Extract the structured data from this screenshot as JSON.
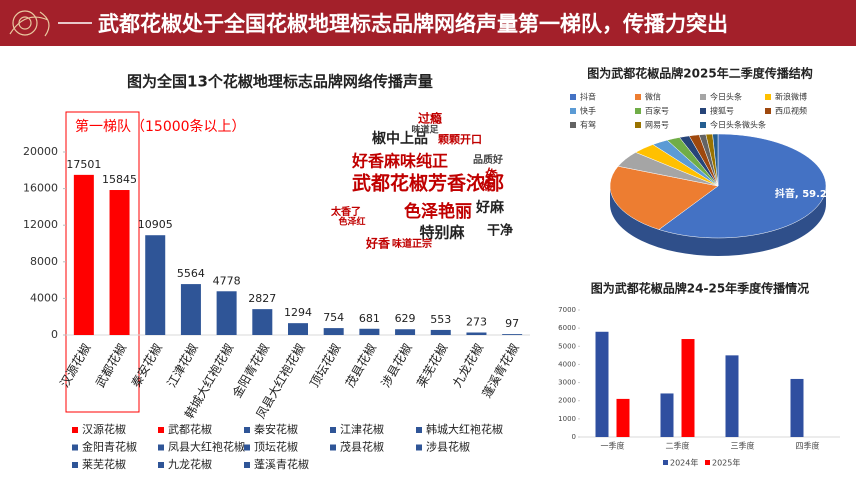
{
  "header": {
    "title": "武都花椒处于全国花椒地理标志品牌网络声量第一梯队，传播力突出"
  },
  "chart_data": [
    {
      "type": "bar",
      "title": "图为全国13个花椒地理标志品牌网络传播声量",
      "annotation": "第一梯队（15000条以上）",
      "categories": [
        "汉源花椒",
        "武都花椒",
        "秦安花椒",
        "江津花椒",
        "韩城大红袍花椒",
        "金阳青花椒",
        "凤县大红袍花椒",
        "顶坛花椒",
        "茂县花椒",
        "涉县花椒",
        "莱芜花椒",
        "九龙花椒",
        "蓬溪青花椒"
      ],
      "values": [
        17501,
        15845,
        10905,
        5564,
        4778,
        2827,
        1294,
        754,
        681,
        629,
        553,
        273,
        97
      ],
      "colors": [
        "#ff0000",
        "#ff0000",
        "#2f5597",
        "#2f5597",
        "#2f5597",
        "#2f5597",
        "#2f5597",
        "#2f5597",
        "#2f5597",
        "#2f5597",
        "#2f5597",
        "#2f5597",
        "#2f5597"
      ],
      "ylim": [
        0,
        20000
      ],
      "yticks": [
        0,
        4000,
        8000,
        12000,
        16000,
        20000
      ],
      "legend": "bottom"
    },
    {
      "type": "pie",
      "title": "图为武都花椒品牌2025年二季度传播结构",
      "categories": [
        "抖音",
        "微信",
        "今日头条",
        "新浪微博",
        "快手",
        "百家号",
        "搜狐号",
        "西瓜视频",
        "有驾",
        "网易号",
        "今日头条微头条"
      ],
      "values": [
        59.2,
        22,
        5,
        3.5,
        2.5,
        2,
        1.5,
        1.5,
        1,
        1,
        0.8
      ],
      "value_labels": [
        "抖音, 59.2",
        null,
        null,
        null,
        null,
        null,
        null,
        null,
        null,
        null,
        null
      ],
      "colors": [
        "#4472c4",
        "#ed7d31",
        "#a5a5a5",
        "#ffc000",
        "#5b9bd5",
        "#70ad47",
        "#264478",
        "#9e480e",
        "#636363",
        "#997300",
        "#255e91"
      ],
      "legend": "top"
    },
    {
      "type": "grouped-bar",
      "title": "图为武都花椒品牌24-25年季度传播情况",
      "categories": [
        "一季度",
        "二季度",
        "三季度",
        "四季度"
      ],
      "series": [
        {
          "name": "2024年",
          "color": "#2f4fa0",
          "values": [
            5800,
            2400,
            4500,
            3200
          ]
        },
        {
          "name": "2025年",
          "color": "#ff0000",
          "values": [
            2100,
            5400,
            null,
            null
          ]
        }
      ],
      "ylim": [
        0,
        7000
      ],
      "yticks": [
        0,
        1000,
        2000,
        3000,
        4000,
        5000,
        6000,
        7000
      ],
      "legend": "bottom"
    }
  ],
  "word_cloud": {
    "words": [
      "武都花椒芳香浓郁",
      "椒中上品",
      "好香麻味纯正",
      "色泽艳丽",
      "特别麻",
      "干净",
      "好麻",
      "过瘾",
      "味道正宗",
      "好香",
      "香麻",
      "颗颗开口",
      "味道足",
      "太香了",
      "品质好",
      "色泽红"
    ]
  }
}
